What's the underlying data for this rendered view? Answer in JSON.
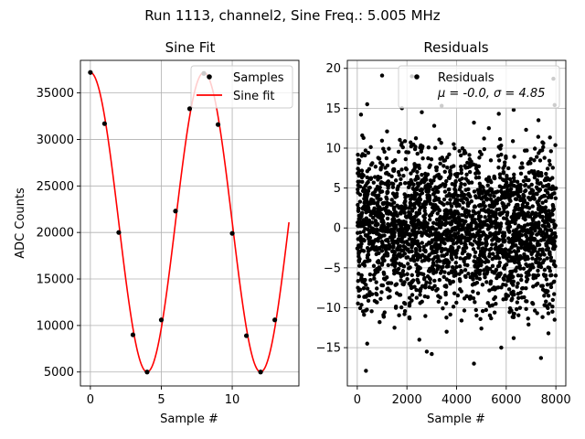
{
  "figure": {
    "title": "Run 1113, channel2, Sine Freq.: 5.005 MHz"
  },
  "chart_data": [
    {
      "type": "line",
      "title": "Sine Fit",
      "xlabel": "Sample #",
      "ylabel": "ADC Counts",
      "xlim": [
        -0.7,
        14.7
      ],
      "ylim": [
        3500,
        38500
      ],
      "xticks": [
        0,
        5,
        10
      ],
      "yticks": [
        5000,
        10000,
        15000,
        20000,
        25000,
        30000,
        35000
      ],
      "grid": true,
      "legend_position": "top-right",
      "sine_model": {
        "offset": 21100,
        "amplitude": 16100,
        "period": 8.0,
        "peak_at": 0.0
      },
      "series": [
        {
          "name": "Samples",
          "kind": "scatter",
          "color": "#000000",
          "x": [
            0,
            1,
            2,
            3,
            4,
            5,
            6,
            7,
            8,
            9,
            10,
            11,
            12,
            13
          ],
          "y": [
            37200,
            31700,
            20000,
            9000,
            5000,
            10600,
            22300,
            33300,
            37100,
            31600,
            19900,
            8900,
            5000,
            10600
          ]
        },
        {
          "name": "Sine fit",
          "kind": "line",
          "color": "#ff0000",
          "x_range": [
            0,
            14
          ]
        }
      ]
    },
    {
      "type": "scatter",
      "title": "Residuals",
      "xlabel": "Sample #",
      "ylabel": "",
      "xlim": [
        -400,
        8400
      ],
      "ylim": [
        -19.8,
        21.0
      ],
      "xticks": [
        0,
        2000,
        4000,
        6000,
        8000
      ],
      "yticks": [
        -15,
        -10,
        -5,
        0,
        5,
        10,
        15,
        20
      ],
      "grid": true,
      "legend_position": "top-right",
      "series": [
        {
          "name": "Residuals",
          "stats_label": "μ = -0.0, σ = 4.85",
          "color": "#000000",
          "points": [
            [
              1000,
              19.1
            ],
            [
              2200,
              19.0
            ],
            [
              7900,
              18.7
            ],
            [
              3400,
              15.3
            ],
            [
              400,
              15.5
            ],
            [
              1800,
              15.0
            ],
            [
              6300,
              14.8
            ],
            [
              7950,
              15.4
            ],
            [
              2600,
              14.5
            ],
            [
              5700,
              14.3
            ],
            [
              150,
              14.2
            ],
            [
              4700,
              13.2
            ],
            [
              7300,
              13.5
            ],
            [
              3100,
              12.8
            ],
            [
              5300,
              12.5
            ],
            [
              1200,
              12.1
            ],
            [
              6800,
              12.3
            ],
            [
              200,
              11.6
            ],
            [
              350,
              -17.9
            ],
            [
              4700,
              -17.0
            ],
            [
              2800,
              -15.5
            ],
            [
              3000,
              -15.8
            ],
            [
              7400,
              -16.3
            ],
            [
              5800,
              -15.0
            ],
            [
              400,
              -14.5
            ],
            [
              2500,
              -14.0
            ],
            [
              6300,
              -13.8
            ],
            [
              3600,
              -13.0
            ],
            [
              7700,
              -13.2
            ],
            [
              1500,
              -12.5
            ],
            [
              5000,
              -12.6
            ],
            [
              6900,
              -12.1
            ],
            [
              900,
              -11.8
            ],
            [
              4200,
              -11.6
            ],
            [
              2100,
              -11.2
            ],
            [
              7950,
              -11.5
            ]
          ],
          "bulk_points": {
            "count": 2600,
            "x_range": [
              0,
              8000
            ],
            "mean": 0.0,
            "std": 4.85
          }
        }
      ]
    }
  ]
}
